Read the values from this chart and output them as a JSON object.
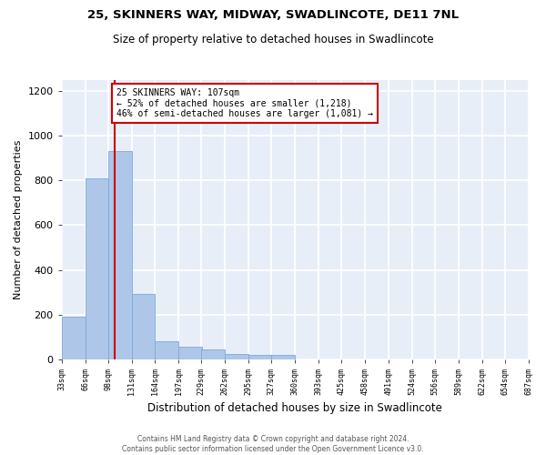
{
  "title1": "25, SKINNERS WAY, MIDWAY, SWADLINCOTE, DE11 7NL",
  "title2": "Size of property relative to detached houses in Swadlincote",
  "xlabel": "Distribution of detached houses by size in Swadlincote",
  "ylabel": "Number of detached properties",
  "footer1": "Contains HM Land Registry data © Crown copyright and database right 2024.",
  "footer2": "Contains public sector information licensed under the Open Government Licence v3.0.",
  "bin_labels": [
    "33sqm",
    "66sqm",
    "98sqm",
    "131sqm",
    "164sqm",
    "197sqm",
    "229sqm",
    "262sqm",
    "295sqm",
    "327sqm",
    "360sqm",
    "393sqm",
    "425sqm",
    "458sqm",
    "491sqm",
    "524sqm",
    "556sqm",
    "589sqm",
    "622sqm",
    "654sqm",
    "687sqm"
  ],
  "bin_edges": [
    33,
    66,
    98,
    131,
    164,
    197,
    229,
    262,
    295,
    327,
    360,
    393,
    425,
    458,
    491,
    524,
    556,
    589,
    622,
    654,
    687
  ],
  "bar_heights": [
    190,
    810,
    930,
    290,
    80,
    55,
    45,
    25,
    20,
    18,
    0,
    0,
    0,
    0,
    0,
    0,
    0,
    0,
    0,
    0
  ],
  "bar_color": "#aec6e8",
  "bar_edge_color": "#7aabe0",
  "plot_bg_color": "#e8eef8",
  "fig_bg_color": "#ffffff",
  "grid_color": "#ffffff",
  "property_line_x": 107,
  "property_line_color": "#cc0000",
  "annotation_text": "25 SKINNERS WAY: 107sqm\n← 52% of detached houses are smaller (1,218)\n46% of semi-detached houses are larger (1,081) →",
  "annotation_box_facecolor": "#ffffff",
  "annotation_box_edgecolor": "#cc0000",
  "ylim": [
    0,
    1250
  ],
  "yticks": [
    0,
    200,
    400,
    600,
    800,
    1000,
    1200
  ]
}
